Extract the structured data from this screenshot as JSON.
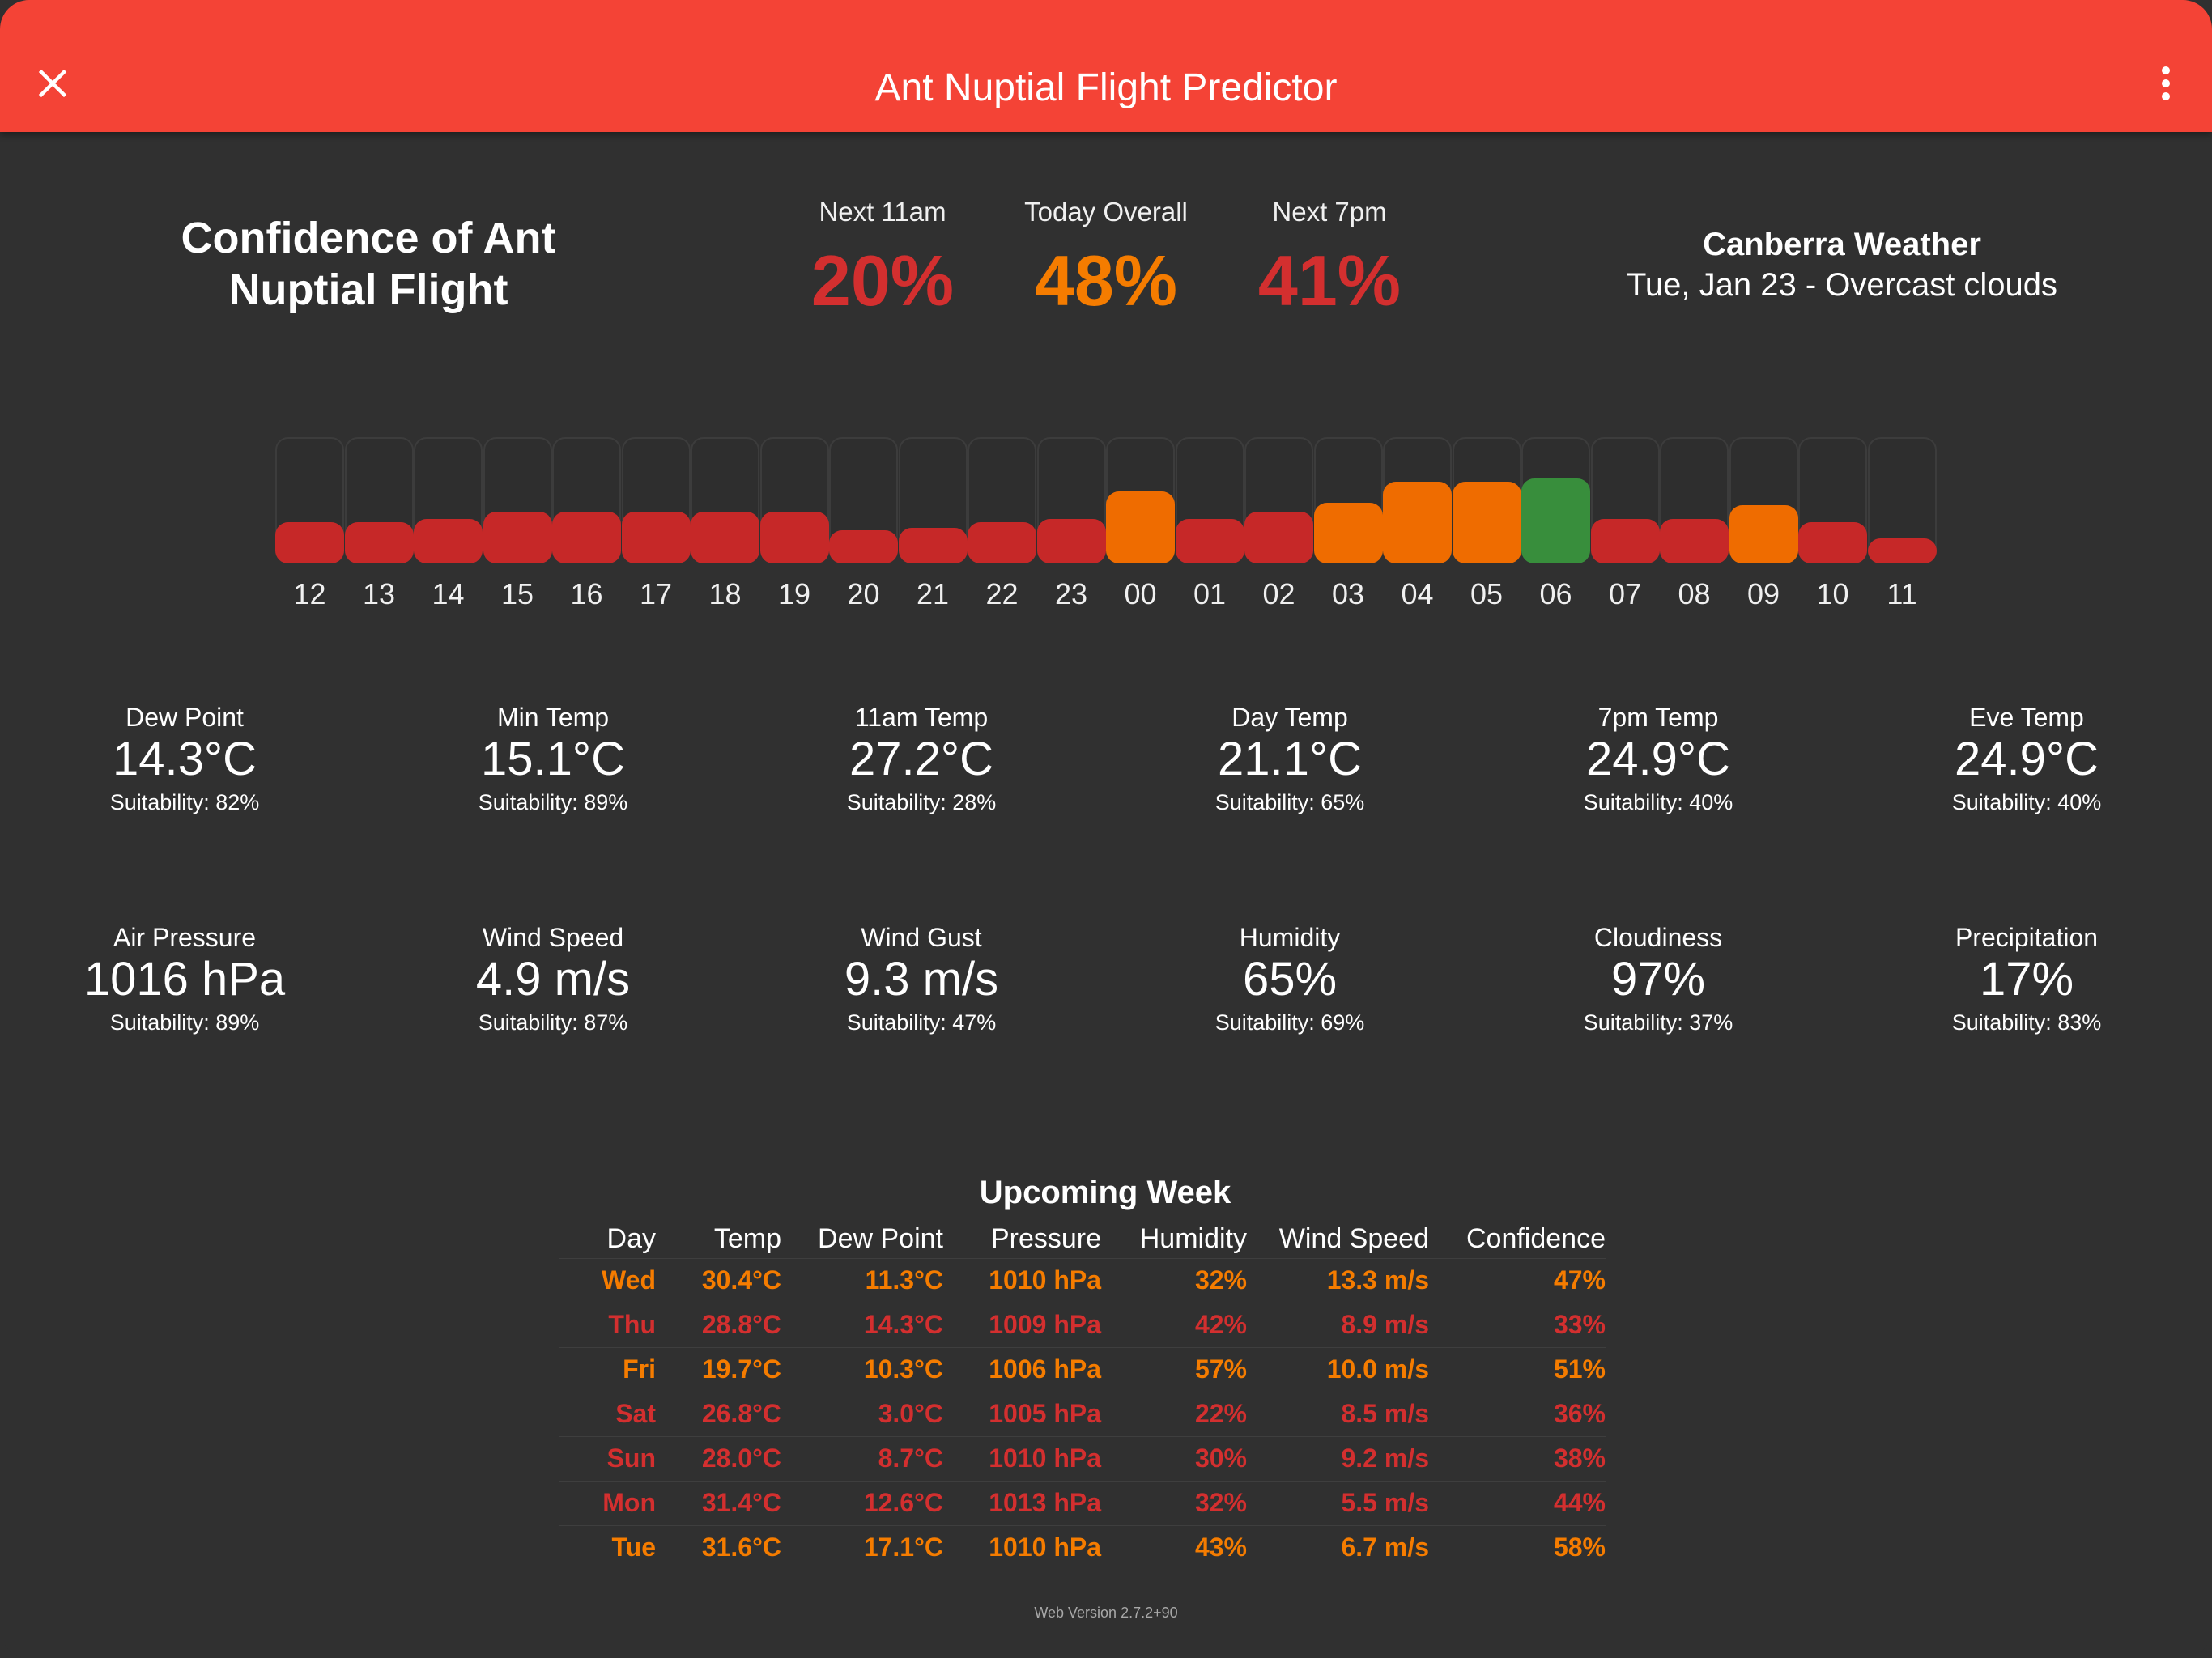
{
  "appbar": {
    "title": "Ant Nuptial Flight Predictor",
    "close_icon": "close-icon",
    "menu_icon": "more-vert-icon",
    "color": "#f44336"
  },
  "confidence": {
    "title": "Confidence of Ant Nuptial Flight",
    "stats": [
      {
        "label": "Next 11am",
        "value": "20%",
        "color": "#d32f2f"
      },
      {
        "label": "Today Overall",
        "value": "48%",
        "color": "#f57c00"
      },
      {
        "label": "Next 7pm",
        "value": "41%",
        "color": "#d32f2f"
      }
    ]
  },
  "weather": {
    "title": "Canberra Weather",
    "subtitle": "Tue, Jan 23 - Overcast clouds"
  },
  "hourly": [
    {
      "hour": "12",
      "level": 0.33,
      "color": "#c62828"
    },
    {
      "hour": "13",
      "level": 0.33,
      "color": "#c62828"
    },
    {
      "hour": "14",
      "level": 0.35,
      "color": "#c62828"
    },
    {
      "hour": "15",
      "level": 0.41,
      "color": "#c62828"
    },
    {
      "hour": "16",
      "level": 0.41,
      "color": "#c62828"
    },
    {
      "hour": "17",
      "level": 0.41,
      "color": "#c62828"
    },
    {
      "hour": "18",
      "level": 0.41,
      "color": "#c62828"
    },
    {
      "hour": "19",
      "level": 0.41,
      "color": "#c62828"
    },
    {
      "hour": "20",
      "level": 0.26,
      "color": "#c62828"
    },
    {
      "hour": "21",
      "level": 0.28,
      "color": "#c62828"
    },
    {
      "hour": "22",
      "level": 0.33,
      "color": "#c62828"
    },
    {
      "hour": "23",
      "level": 0.35,
      "color": "#c62828"
    },
    {
      "hour": "00",
      "level": 0.57,
      "color": "#ef6c00"
    },
    {
      "hour": "01",
      "level": 0.35,
      "color": "#c62828"
    },
    {
      "hour": "02",
      "level": 0.41,
      "color": "#c62828"
    },
    {
      "hour": "03",
      "level": 0.48,
      "color": "#ef6c00"
    },
    {
      "hour": "04",
      "level": 0.65,
      "color": "#ef6c00"
    },
    {
      "hour": "05",
      "level": 0.65,
      "color": "#ef6c00"
    },
    {
      "hour": "06",
      "level": 0.67,
      "color": "#388e3c"
    },
    {
      "hour": "07",
      "level": 0.35,
      "color": "#c62828"
    },
    {
      "hour": "08",
      "level": 0.35,
      "color": "#c62828"
    },
    {
      "hour": "09",
      "level": 0.46,
      "color": "#ef6c00"
    },
    {
      "hour": "10",
      "level": 0.33,
      "color": "#c62828"
    },
    {
      "hour": "11",
      "level": 0.2,
      "color": "#c62828"
    }
  ],
  "metrics": [
    {
      "label": "Dew Point",
      "value": "14.3°C",
      "suitability": "Suitability: 82%"
    },
    {
      "label": "Min Temp",
      "value": "15.1°C",
      "suitability": "Suitability: 89%"
    },
    {
      "label": "11am Temp",
      "value": "27.2°C",
      "suitability": "Suitability: 28%"
    },
    {
      "label": "Day Temp",
      "value": "21.1°C",
      "suitability": "Suitability: 65%"
    },
    {
      "label": "7pm Temp",
      "value": "24.9°C",
      "suitability": "Suitability: 40%"
    },
    {
      "label": "Eve Temp",
      "value": "24.9°C",
      "suitability": "Suitability: 40%"
    },
    {
      "label": "Air Pressure",
      "value": "1016 hPa",
      "suitability": "Suitability: 89%"
    },
    {
      "label": "Wind Speed",
      "value": "4.9 m/s",
      "suitability": "Suitability: 87%"
    },
    {
      "label": "Wind Gust",
      "value": "9.3 m/s",
      "suitability": "Suitability: 47%"
    },
    {
      "label": "Humidity",
      "value": "65%",
      "suitability": "Suitability: 69%"
    },
    {
      "label": "Cloudiness",
      "value": "97%",
      "suitability": "Suitability: 37%"
    },
    {
      "label": "Precipitation",
      "value": "17%",
      "suitability": "Suitability: 83%"
    }
  ],
  "week": {
    "title": "Upcoming Week",
    "headers": [
      "Day",
      "Temp",
      "Dew Point",
      "Pressure",
      "Humidity",
      "Wind Speed",
      "Confidence"
    ],
    "rows": [
      {
        "cells": [
          "Wed",
          "30.4°C",
          "11.3°C",
          "1010 hPa",
          "32%",
          "13.3 m/s",
          "47%"
        ],
        "color": "#f57c00"
      },
      {
        "cells": [
          "Thu",
          "28.8°C",
          "14.3°C",
          "1009 hPa",
          "42%",
          "8.9 m/s",
          "33%"
        ],
        "color": "#d32f2f"
      },
      {
        "cells": [
          "Fri",
          "19.7°C",
          "10.3°C",
          "1006 hPa",
          "57%",
          "10.0 m/s",
          "51%"
        ],
        "color": "#f57c00"
      },
      {
        "cells": [
          "Sat",
          "26.8°C",
          "3.0°C",
          "1005 hPa",
          "22%",
          "8.5 m/s",
          "36%"
        ],
        "color": "#d32f2f"
      },
      {
        "cells": [
          "Sun",
          "28.0°C",
          "8.7°C",
          "1010 hPa",
          "30%",
          "9.2 m/s",
          "38%"
        ],
        "color": "#d32f2f"
      },
      {
        "cells": [
          "Mon",
          "31.4°C",
          "12.6°C",
          "1013 hPa",
          "32%",
          "5.5 m/s",
          "44%"
        ],
        "color": "#d32f2f"
      },
      {
        "cells": [
          "Tue",
          "31.6°C",
          "17.1°C",
          "1010 hPa",
          "43%",
          "6.7 m/s",
          "58%"
        ],
        "color": "#f57c00"
      }
    ]
  },
  "footer": {
    "version": "Web Version 2.7.2+90"
  }
}
